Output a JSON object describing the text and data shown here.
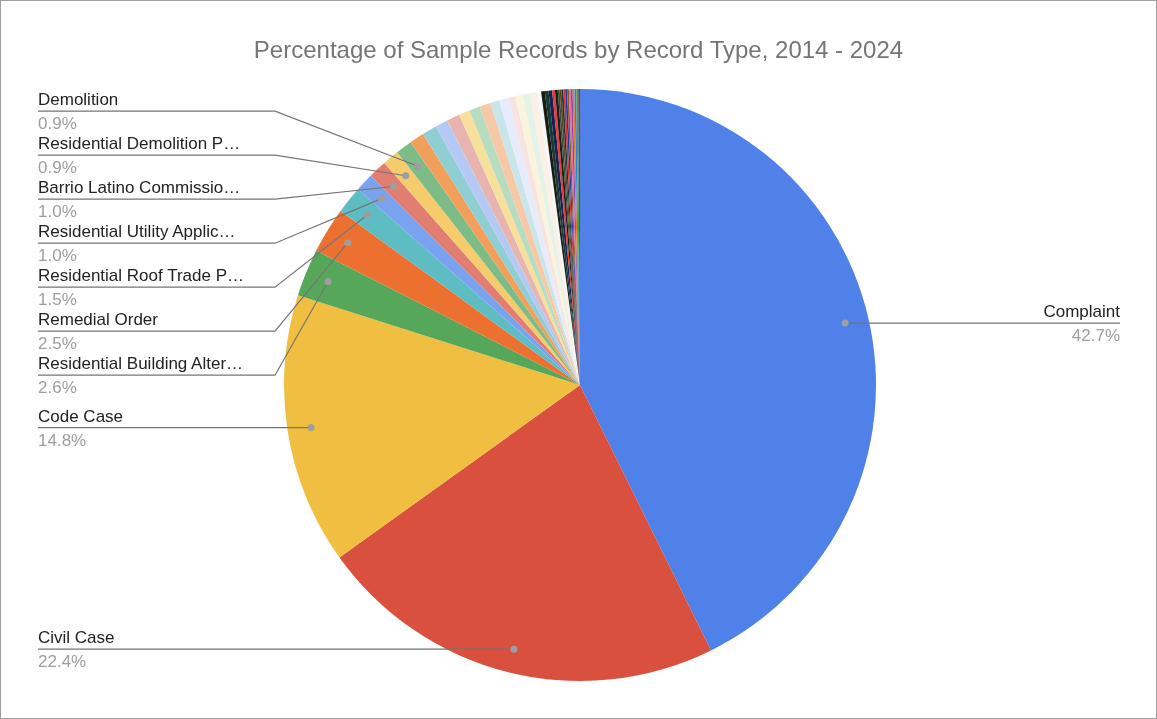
{
  "chart_data": {
    "type": "pie",
    "title": "Percentage of Sample Records by Record Type, 2014 - 2024",
    "categories": [
      "Complaint",
      "Civil Case",
      "Code Case",
      "Residential Building Alter…",
      "Remedial Order",
      "Residential Roof Trade P…",
      "Residential Utility Applic…",
      "Barrio Latino Commissio…",
      "Residential Demolition P…",
      "Demolition",
      null,
      null,
      null,
      null,
      null,
      null,
      null,
      null,
      null,
      null,
      null,
      null,
      null,
      null,
      null,
      null,
      null,
      null,
      null,
      null,
      null,
      null,
      null,
      null,
      null,
      null,
      null,
      null,
      null,
      null,
      null
    ],
    "values": [
      42.7,
      22.4,
      14.8,
      2.6,
      2.5,
      1.5,
      1.0,
      1.0,
      0.9,
      0.9,
      0.8,
      0.8,
      0.7,
      0.7,
      0.6,
      0.6,
      0.6,
      0.5,
      0.5,
      0.4,
      0.4,
      0.4,
      0.4,
      0.2,
      0.2,
      0.2,
      0.2,
      0.15,
      0.15,
      0.1,
      0.1,
      0.1,
      0.1,
      0.1,
      0.1,
      0.1,
      0.1,
      0.1,
      0.1,
      0.1,
      0.1
    ],
    "colors": [
      "#4f81e9",
      "#d9503e",
      "#f0be41",
      "#57a75a",
      "#ec7130",
      "#5ebdc2",
      "#7ba2ef",
      "#e07e72",
      "#f6cb6b",
      "#7dbc86",
      "#f29f5c",
      "#8fcfd4",
      "#b4c9f4",
      "#e8b4b0",
      "#f7df9c",
      "#b7dcc0",
      "#f6c8a6",
      "#c8e6e9",
      "#e6ecfb",
      "#f7e3e1",
      "#fcf3dc",
      "#e4f2e8",
      "#fbefe6",
      "#f2f8f9",
      "#1e1a10",
      "#153a38",
      "#13224f",
      "#e8393b",
      "#1d1d1d",
      "#2f5234",
      "#5a4222",
      "#263238",
      "#d32f2f",
      "#1a3ea8",
      "#8a5a22",
      "#e46ba6",
      "#8e44ad",
      "#e67e22",
      "#1e88e5",
      "#43a047",
      "#6d4c41"
    ],
    "value_labels": [
      "42.7%",
      "22.4%",
      "14.8%",
      "2.6%",
      "2.5%",
      "1.5%",
      "1.0%",
      "1.0%",
      "0.9%",
      "0.9%",
      null,
      null,
      null,
      null,
      null,
      null,
      null,
      null,
      null,
      null,
      null,
      null,
      null,
      null,
      null,
      null,
      null,
      null,
      null,
      null,
      null,
      null,
      null,
      null,
      null,
      null,
      null,
      null,
      null,
      null,
      null
    ]
  }
}
